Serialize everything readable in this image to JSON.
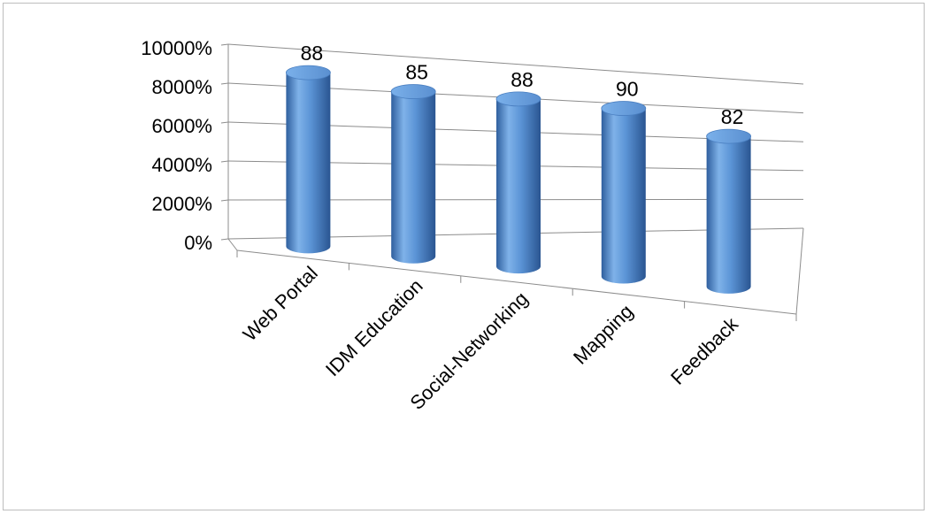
{
  "chart_data": {
    "type": "bar",
    "style": "3d-cylinder",
    "categories": [
      "Web Portal",
      "IDM Education",
      "Social-Networking",
      "Mapping",
      "Feedback"
    ],
    "values": [
      88,
      85,
      88,
      90,
      82
    ],
    "data_labels": [
      "88",
      "85",
      "88",
      "90",
      "82"
    ],
    "yticks": [
      "0%",
      "2000%",
      "4000%",
      "6000%",
      "8000%",
      "10000%"
    ],
    "ylim": [
      0,
      100
    ],
    "grid": true,
    "legend": "none",
    "bar_color": "#5b9bd5"
  }
}
